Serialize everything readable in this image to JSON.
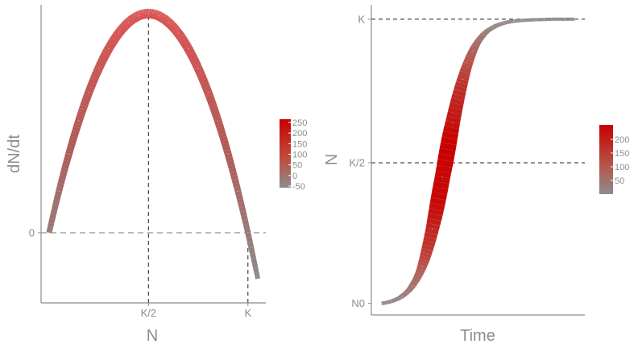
{
  "colors": {
    "low": "#8c8c8c",
    "mid": "#d95050",
    "high": "#c80000",
    "axis": "#8c8c8c",
    "reference": "#333333",
    "zero_line": "#a0a0a0"
  },
  "chart_data": [
    {
      "type": "line",
      "description_of_series": "logistic growth rate dN/dt as a function of population N, colored by dN/dt",
      "xlabel": "N",
      "ylabel": "dN/dt",
      "x_ticks": [
        {
          "value": 0.5,
          "label": "K/2"
        },
        {
          "value": 1.0,
          "label": "K"
        }
      ],
      "y_ticks": [
        {
          "value": 0,
          "label": "0"
        }
      ],
      "xlim": [
        -0.04,
        1.09
      ],
      "ylim": [
        -0.08,
        0.26
      ],
      "series": [
        {
          "x": [
            0.0,
            0.05,
            0.1,
            0.15,
            0.2,
            0.25,
            0.3,
            0.35,
            0.4,
            0.45,
            0.5,
            0.55,
            0.6,
            0.65,
            0.7,
            0.75,
            0.8,
            0.85,
            0.9,
            0.95,
            1.0,
            1.05
          ],
          "y": [
            0.0,
            0.0475,
            0.09,
            0.1275,
            0.16,
            0.1875,
            0.21,
            0.2275,
            0.24,
            0.2475,
            0.25,
            0.2475,
            0.24,
            0.2275,
            0.21,
            0.1875,
            0.16,
            0.1275,
            0.09,
            0.0475,
            0.0,
            -0.0525
          ]
        }
      ],
      "reference_lines": [
        {
          "orientation": "vertical",
          "at": 0.5,
          "style": "dashed"
        },
        {
          "orientation": "vertical",
          "at": 1.0,
          "style": "dashed"
        },
        {
          "orientation": "horizontal",
          "at": 0,
          "style": "dashed"
        }
      ],
      "color_legend": {
        "title": "",
        "labels": [
          "250",
          "200",
          "150",
          "100",
          "50",
          "0",
          "-50"
        ],
        "range": [
          -50,
          250
        ]
      },
      "grid": false
    },
    {
      "type": "line",
      "description_of_series": "logistic population N over time, colored by growth rate",
      "xlabel": "Time",
      "ylabel": "N",
      "y_ticks": [
        {
          "value": 0.01,
          "label": "N0"
        },
        {
          "value": 0.5,
          "label": "K/2"
        },
        {
          "value": 1.0,
          "label": "K"
        }
      ],
      "x_ticks": [],
      "xlim": [
        -0.05,
        1.0
      ],
      "ylim": [
        -0.03,
        1.05
      ],
      "series": [
        {
          "x": [
            0.0,
            0.05,
            0.1,
            0.15,
            0.2,
            0.25,
            0.3,
            0.35,
            0.4,
            0.45,
            0.5,
            0.55,
            0.6,
            0.65,
            0.7,
            0.75,
            0.8,
            0.85,
            0.9,
            0.95
          ],
          "y": [
            0.01,
            0.018,
            0.035,
            0.07,
            0.14,
            0.27,
            0.45,
            0.64,
            0.79,
            0.89,
            0.945,
            0.972,
            0.986,
            0.993,
            0.996,
            0.998,
            0.999,
            1.0,
            1.0,
            1.0
          ]
        }
      ],
      "reference_lines": [
        {
          "orientation": "horizontal",
          "at": 1.0,
          "style": "dashed"
        },
        {
          "orientation": "horizontal",
          "at": 0.5,
          "style": "dashed"
        }
      ],
      "color_legend": {
        "title": "",
        "labels": [
          "200",
          "150",
          "100",
          "50"
        ],
        "range": [
          10,
          250
        ]
      },
      "grid": false
    }
  ]
}
